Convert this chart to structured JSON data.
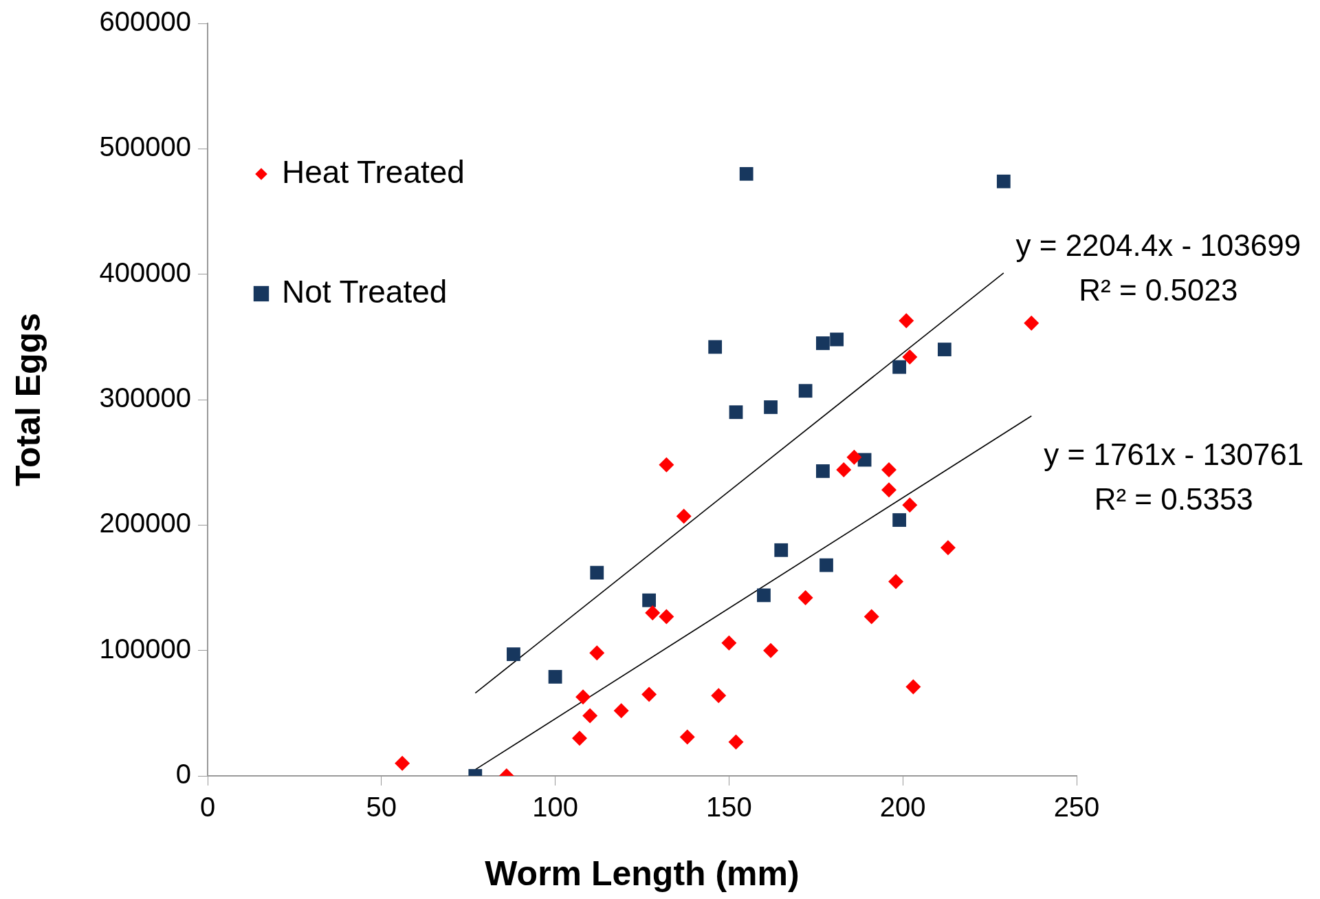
{
  "chart_data": {
    "type": "scatter",
    "xlabel": "Worm Length (mm)",
    "ylabel": "Total Eggs",
    "xlim": [
      0,
      250
    ],
    "ylim": [
      0,
      600000
    ],
    "xticks": [
      0,
      50,
      100,
      150,
      200,
      250
    ],
    "yticks": [
      0,
      100000,
      200000,
      300000,
      400000,
      500000,
      600000
    ],
    "grid": false,
    "legend": "top left",
    "annotations": [
      "y = 2204.4x - 103699",
      "R² = 0.5023",
      "y = 1761x - 130761",
      "R² = 0.5353"
    ],
    "series": [
      {
        "name": "Heat Treated",
        "color": "#ff0000",
        "marker": "diamond",
        "x": [
          56,
          86,
          108,
          110,
          107,
          112,
          119,
          127,
          128,
          132,
          132,
          137,
          138,
          147,
          150,
          152,
          162,
          172,
          183,
          186,
          191,
          196,
          196,
          198,
          201,
          202,
          202,
          203,
          213,
          237
        ],
        "values": [
          10000,
          0,
          63000,
          48000,
          30000,
          98000,
          52000,
          65000,
          130000,
          127000,
          248000,
          207000,
          31000,
          64000,
          106000,
          27000,
          100000,
          142000,
          244000,
          254000,
          127000,
          244000,
          228000,
          155000,
          363000,
          334000,
          216000,
          71000,
          182000,
          361000
        ]
      },
      {
        "name": "Not Treated",
        "color": "#17375e",
        "marker": "square",
        "x": [
          77,
          88,
          100,
          112,
          127,
          146,
          155,
          152,
          162,
          160,
          165,
          172,
          177,
          181,
          177,
          178,
          189,
          199,
          199,
          212,
          229
        ],
        "values": [
          0,
          97000,
          79000,
          162000,
          140000,
          342000,
          480000,
          290000,
          294000,
          144000,
          180000,
          307000,
          345000,
          348000,
          243000,
          168000,
          252000,
          326000,
          204000,
          340000,
          474000
        ]
      },
      {
        "type": "line",
        "color": "#000000",
        "marker": "none",
        "x": [
          77,
          229
        ],
        "values": [
          66000,
          401000
        ]
      },
      {
        "type": "line",
        "color": "#000000",
        "marker": "none",
        "x": [
          77,
          237
        ],
        "values": [
          5000,
          287000
        ]
      }
    ]
  }
}
